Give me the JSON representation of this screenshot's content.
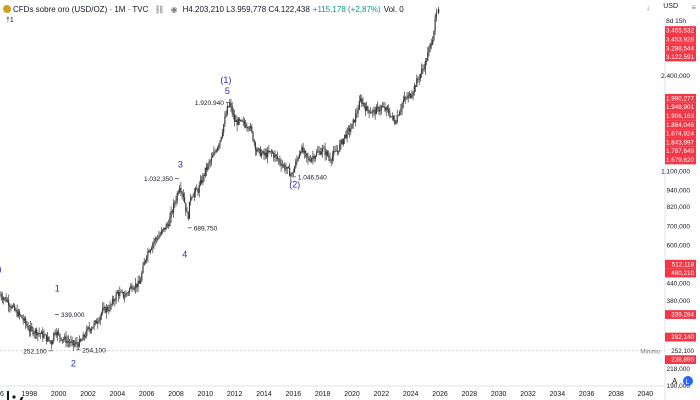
{
  "header": {
    "symbol": "CFDs sobre oro (USD/OZ) · 1M · TVC",
    "ohlc": "H4.203,210  L3.959,778  C4.122,438",
    "change": "+115,178 (+2,87%)",
    "volume": "Vol. 0",
    "currency": "USD",
    "countdown": "8d 15h",
    "marker": "†1"
  },
  "icons": [
    "symbol-icon",
    "compare-icon",
    "eye-icon",
    "download-icon",
    "menu-icon",
    "tradingview-logo-icon",
    "auto-scale-icon",
    "log-scale-icon"
  ],
  "colors": {
    "up": "#089981",
    "down": "#f23645",
    "candle": "#3a3a3a",
    "wave": "#2a2ab8",
    "badge_red": "#f23645"
  },
  "chart_data": {
    "type": "line",
    "title": "CFDs sobre oro (USD/OZ)",
    "timeframe": "1M",
    "yscale": "log",
    "ylim": [
      180,
      4450
    ],
    "xlim": [
      1996,
      2041
    ],
    "grid": false,
    "x_ticks": [
      "96",
      "1998",
      "2000",
      "2002",
      "2004",
      "2006",
      "2008",
      "2010",
      "2012",
      "2014",
      "2016",
      "2018",
      "2020",
      "2022",
      "2024",
      "2026",
      "2028",
      "2030",
      "2032",
      "2034",
      "2036",
      "2038",
      "2040"
    ],
    "y_ticks": [
      "2.400,000",
      "1.100,000",
      "940,000",
      "820,000",
      "700,000",
      "600,000",
      "440,000",
      "380,000",
      "218,000",
      "190,000"
    ],
    "price_badges": [
      "3.465,532",
      "3.453,928",
      "3.288,544",
      "3.122,591",
      "1.990,277",
      "1.948,901",
      "1.906,163",
      "1.884,046",
      "1.874,924",
      "1.843,997",
      "1.787,649",
      "1.679,620",
      "512,118",
      "480,210",
      "339,284",
      "282,140",
      "252,100",
      "238,895"
    ],
    "minimo_label": "Mínimo",
    "minimo_value": "252,100",
    "series": [
      {
        "x": [
          1996.0,
          1996.5,
          1997.0,
          1997.5,
          1998.0,
          1998.5,
          1999.0,
          1999.5,
          1999.75,
          2000.0,
          2000.5,
          2001.0,
          2001.5,
          2002.0,
          2002.5,
          2003.0,
          2003.5,
          2004.0,
          2004.5,
          2005.0,
          2005.5,
          2006.0,
          2006.5,
          2007.0,
          2007.5,
          2008.0,
          2008.25,
          2008.5,
          2008.8,
          2009.0,
          2009.5,
          2010.0,
          2010.5,
          2011.0,
          2011.5,
          2011.67,
          2012.0,
          2012.5,
          2013.0,
          2013.5,
          2014.0,
          2014.5,
          2015.0,
          2015.5,
          2015.9,
          2016.5,
          2017.0,
          2017.5,
          2018.0,
          2018.5,
          2019.0,
          2019.5,
          2020.0,
          2020.6,
          2021.0,
          2021.5,
          2022.0,
          2022.5,
          2022.9,
          2023.5,
          2024.0,
          2024.5,
          2025.0,
          2025.5,
          2025.8
        ],
        "y": [
          400,
          380,
          350,
          330,
          300,
          295,
          285,
          270,
          300,
          285,
          275,
          265,
          270,
          300,
          315,
          350,
          360,
          405,
          395,
          430,
          435,
          560,
          620,
          660,
          720,
          880,
          980,
          900,
          740,
          900,
          940,
          1100,
          1230,
          1420,
          1820,
          1900,
          1650,
          1620,
          1600,
          1300,
          1250,
          1280,
          1200,
          1120,
          1060,
          1320,
          1200,
          1260,
          1310,
          1220,
          1300,
          1460,
          1580,
          1970,
          1820,
          1780,
          1850,
          1780,
          1640,
          1950,
          2050,
          2330,
          2650,
          3300,
          4110
        ]
      }
    ],
    "annotations": [
      {
        "text": "(1)",
        "x": 2011.4,
        "y": 2260,
        "kind": "wave"
      },
      {
        "text": "5",
        "x": 2011.5,
        "y": 2060,
        "kind": "wave"
      },
      {
        "text": "1.920,940",
        "x": 2011.67,
        "y": 1920.94,
        "kind": "price",
        "side": "left"
      },
      {
        "text": "3",
        "x": 2008.3,
        "y": 1130,
        "kind": "wave"
      },
      {
        "text": "1.032,350",
        "x": 2008.2,
        "y": 1032.35,
        "kind": "price",
        "side": "left"
      },
      {
        "text": "689,750",
        "x": 2008.8,
        "y": 689.75,
        "kind": "price",
        "side": "right"
      },
      {
        "text": "4",
        "x": 2008.6,
        "y": 540,
        "kind": "wave"
      },
      {
        "text": "(2)",
        "x": 2016.1,
        "y": 960,
        "kind": "wave"
      },
      {
        "text": "1.046,540",
        "x": 2015.9,
        "y": 1046.54,
        "kind": "price",
        "side": "right"
      },
      {
        "text": "1",
        "x": 1999.9,
        "y": 410,
        "kind": "wave"
      },
      {
        "text": "339,000",
        "x": 1999.75,
        "y": 339,
        "kind": "price",
        "side": "right"
      },
      {
        "text": "252,100",
        "x": 1999.6,
        "y": 252.1,
        "kind": "price",
        "side": "left"
      },
      {
        "text": "254,100",
        "x": 2001.2,
        "y": 254.1,
        "kind": "price",
        "side": "right"
      },
      {
        "text": "2",
        "x": 2001.0,
        "y": 222,
        "kind": "wave"
      },
      {
        "text": ")",
        "x": 1996.0,
        "y": 480,
        "kind": "wave"
      }
    ]
  }
}
